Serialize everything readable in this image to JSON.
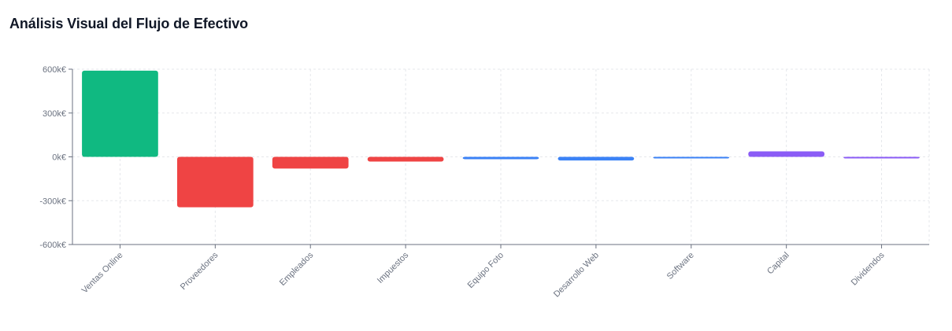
{
  "title": "Análisis Visual del Flujo de Efectivo",
  "chart_data": {
    "type": "bar",
    "categories": [
      "Ventas Online",
      "Proveedores",
      "Empleados",
      "Impuestos",
      "Equipo Foto",
      "Desarrollo Web",
      "Software",
      "Capital",
      "Dividendos"
    ],
    "values": [
      590000,
      -345000,
      -80000,
      -32000,
      -16000,
      -25000,
      -6000,
      38000,
      -6000
    ],
    "colors": [
      "#10b981",
      "#ef4444",
      "#ef4444",
      "#ef4444",
      "#3b82f6",
      "#3b82f6",
      "#3b82f6",
      "#8b5cf6",
      "#8b5cf6"
    ],
    "ylim": [
      -600000,
      600000
    ],
    "yticks": [
      {
        "value": 600000,
        "label": "600k€"
      },
      {
        "value": 300000,
        "label": "300k€"
      },
      {
        "value": 0,
        "label": "0k€"
      },
      {
        "value": -300000,
        "label": "-300k€"
      },
      {
        "value": -600000,
        "label": "-600k€"
      }
    ],
    "grid": true
  }
}
